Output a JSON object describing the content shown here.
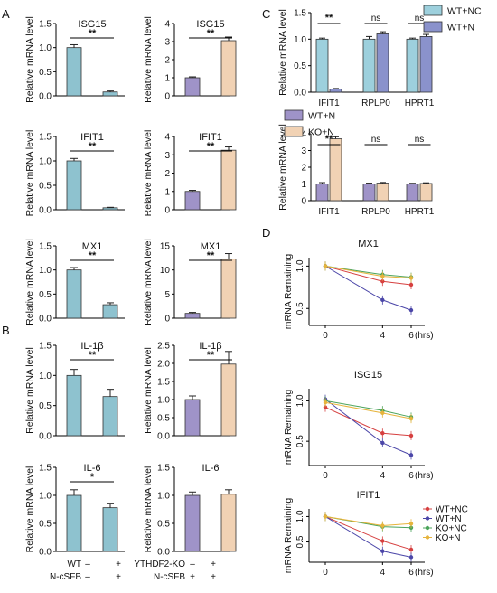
{
  "colors": {
    "blue_bar": "#8ec2cf",
    "purple_bar": "#9f93c8",
    "tan_bar": "#f1d2b4",
    "lightblue_bar": "#9dd0dd",
    "periwinkle_bar": "#8a92cc",
    "wt_nc": "#d64040",
    "wt_n": "#4b46a8",
    "ko_nc": "#4aa35a",
    "ko_n": "#e6b43c"
  },
  "panel_labels": [
    "A",
    "B",
    "C",
    "D"
  ],
  "axis": {
    "relative_mrna": "Relative mRNA level",
    "mrna_remaining": "mRNA Remaining"
  },
  "group_labels": {
    "left": {
      "row1": "WT",
      "row2": "N-cSFB",
      "marks1": [
        "–",
        "+"
      ],
      "marks2": [
        "–",
        "+"
      ]
    },
    "right": {
      "row1": "YTHDF2-KO",
      "row2": "N-cSFB",
      "marks1": [
        "–",
        "+"
      ],
      "marks2": [
        "+",
        "+"
      ]
    }
  },
  "chart_data": [
    {
      "id": "A-ISG15-left",
      "type": "bar",
      "title": "ISG15",
      "ylabel": "Relative mRNA level",
      "ylim": [
        0,
        1.5
      ],
      "yticks": [
        "0.0",
        "0.5",
        "1.0",
        "1.5"
      ],
      "values": [
        1.0,
        0.08
      ],
      "errors": [
        0.06,
        0.02
      ],
      "significance": "**"
    },
    {
      "id": "A-ISG15-right",
      "type": "bar",
      "title": "ISG15",
      "ylabel": "Relative mRNA level",
      "ylim": [
        0,
        4
      ],
      "yticks": [
        "0",
        "1",
        "2",
        "3",
        "4"
      ],
      "values": [
        1.0,
        3.05
      ],
      "errors": [
        0.05,
        0.2
      ],
      "significance": "**"
    },
    {
      "id": "A-IFIT1-left",
      "type": "bar",
      "title": "IFIT1",
      "ylabel": "Relative mRNA level",
      "ylim": [
        0,
        1.5
      ],
      "yticks": [
        "0.0",
        "0.5",
        "1.0",
        "1.5"
      ],
      "values": [
        1.0,
        0.04
      ],
      "errors": [
        0.05,
        0.01
      ],
      "significance": "**"
    },
    {
      "id": "A-IFIT1-right",
      "type": "bar",
      "title": "IFIT1",
      "ylabel": "Relative mRNA level",
      "ylim": [
        0,
        4
      ],
      "yticks": [
        "0",
        "1",
        "2",
        "3",
        "4"
      ],
      "values": [
        1.0,
        3.25
      ],
      "errors": [
        0.06,
        0.18
      ],
      "significance": "**"
    },
    {
      "id": "A-MX1-left",
      "type": "bar",
      "title": "MX1",
      "ylabel": "Relative mRNA level",
      "ylim": [
        0,
        1.5
      ],
      "yticks": [
        "0.0",
        "0.5",
        "1.0",
        "1.5"
      ],
      "values": [
        1.0,
        0.28
      ],
      "errors": [
        0.05,
        0.04
      ],
      "significance": "**"
    },
    {
      "id": "A-MX1-right",
      "type": "bar",
      "title": "MX1",
      "ylabel": "Relative mRNA level",
      "ylim": [
        0,
        15
      ],
      "yticks": [
        "0",
        "5",
        "10",
        "15"
      ],
      "values": [
        1.0,
        12.3
      ],
      "errors": [
        0.2,
        1.1
      ],
      "significance": "**"
    },
    {
      "id": "B-IL1b-left",
      "type": "bar",
      "title": "IL-1β",
      "ylabel": "Relative mRNA level",
      "ylim": [
        0,
        1.5
      ],
      "yticks": [
        "0.0",
        "0.5",
        "1.0",
        "1.5"
      ],
      "values": [
        1.0,
        0.65
      ],
      "errors": [
        0.1,
        0.12
      ],
      "significance": "**"
    },
    {
      "id": "B-IL1b-right",
      "type": "bar",
      "title": "IL-1β",
      "ylabel": "Relative mRNA level",
      "ylim": [
        0,
        2.5
      ],
      "yticks": [
        "0.0",
        "0.5",
        "1.0",
        "1.5",
        "2.0",
        "2.5"
      ],
      "values": [
        1.0,
        1.98
      ],
      "errors": [
        0.1,
        0.35
      ],
      "significance": "**"
    },
    {
      "id": "B-IL6-left",
      "type": "bar",
      "title": "IL-6",
      "ylabel": "Relative mRNA level",
      "ylim": [
        0,
        1.5
      ],
      "yticks": [
        "0.0",
        "0.5",
        "1.0",
        "1.5"
      ],
      "values": [
        1.0,
        0.78
      ],
      "errors": [
        0.1,
        0.08
      ],
      "significance": "*"
    },
    {
      "id": "B-IL6-right",
      "type": "bar",
      "title": "IL-6",
      "ylabel": "Relative mRNA level",
      "ylim": [
        0,
        1.5
      ],
      "yticks": [
        "0.0",
        "0.5",
        "1.0",
        "1.5"
      ],
      "values": [
        1.0,
        1.02
      ],
      "errors": [
        0.06,
        0.08
      ],
      "significance": ""
    },
    {
      "id": "C-top",
      "type": "bar",
      "title": "",
      "ylabel": "Relative mRNA level",
      "ylim": [
        0,
        1.5
      ],
      "yticks": [
        "0.0",
        "0.5",
        "1.0",
        "1.5"
      ],
      "categories": [
        "IFIT1",
        "RPLP0",
        "HPRT1"
      ],
      "series": [
        {
          "name": "WT+NC",
          "values": [
            1.0,
            1.0,
            1.0
          ],
          "errors": [
            0.02,
            0.05,
            0.02
          ]
        },
        {
          "name": "WT+N",
          "values": [
            0.06,
            1.1,
            1.05
          ],
          "errors": [
            0.01,
            0.04,
            0.04
          ]
        }
      ],
      "significance": [
        "**",
        "ns",
        "ns"
      ]
    },
    {
      "id": "C-bottom",
      "type": "bar",
      "title": "",
      "ylabel": "Relative mRNA level",
      "ylim": [
        0,
        4
      ],
      "yticks": [
        "0",
        "1",
        "2",
        "3",
        "4"
      ],
      "categories": [
        "IFIT1",
        "RPLP0",
        "HPRT1"
      ],
      "series": [
        {
          "name": "WT+N",
          "values": [
            1.0,
            1.0,
            1.0
          ],
          "errors": [
            0.08,
            0.05,
            0.04
          ]
        },
        {
          "name": "KO+N",
          "values": [
            3.7,
            1.05,
            1.03
          ],
          "errors": [
            0.12,
            0.04,
            0.04
          ]
        }
      ],
      "significance": [
        "**",
        "ns",
        "ns"
      ]
    },
    {
      "id": "D-MX1",
      "type": "line",
      "title": "MX1",
      "ylabel": "mRNA Remaining",
      "xlabel": "(hrs)",
      "x": [
        0,
        4,
        6
      ],
      "xticks": [
        "0",
        "4",
        "6"
      ],
      "ylim": [
        0.3,
        1.1
      ],
      "yticks": [
        "1.0",
        "0.5"
      ],
      "series": [
        {
          "name": "WT+NC",
          "values": [
            1.0,
            0.82,
            0.78
          ]
        },
        {
          "name": "WT+N",
          "values": [
            1.0,
            0.6,
            0.48
          ]
        },
        {
          "name": "KO+NC",
          "values": [
            1.0,
            0.9,
            0.87
          ]
        },
        {
          "name": "KO+N",
          "values": [
            1.0,
            0.88,
            0.86
          ]
        }
      ]
    },
    {
      "id": "D-ISG15",
      "type": "line",
      "title": "ISG15",
      "ylabel": "mRNA Remaining",
      "xlabel": "(hrs)",
      "x": [
        0,
        4,
        6
      ],
      "xticks": [
        "0",
        "4",
        "6"
      ],
      "ylim": [
        0.2,
        1.15
      ],
      "yticks": [
        "1.0",
        "0.5"
      ],
      "series": [
        {
          "name": "WT+NC",
          "values": [
            0.92,
            0.6,
            0.57
          ]
        },
        {
          "name": "WT+N",
          "values": [
            1.02,
            0.48,
            0.33
          ]
        },
        {
          "name": "KO+NC",
          "values": [
            1.0,
            0.88,
            0.8
          ]
        },
        {
          "name": "KO+N",
          "values": [
            0.98,
            0.85,
            0.78
          ]
        }
      ]
    },
    {
      "id": "D-IFIT1",
      "type": "line",
      "title": "IFIT1",
      "ylabel": "mRNA Remaining",
      "xlabel": "(hrs)",
      "x": [
        0,
        4,
        6
      ],
      "xticks": [
        "0",
        "4",
        "6"
      ],
      "ylim": [
        0.1,
        1.15
      ],
      "yticks": [
        "1.0",
        "0.5"
      ],
      "legend": "top-right",
      "series": [
        {
          "name": "WT+NC",
          "values": [
            1.0,
            0.52,
            0.35
          ]
        },
        {
          "name": "WT+N",
          "values": [
            1.0,
            0.32,
            0.2
          ]
        },
        {
          "name": "KO+NC",
          "values": [
            1.0,
            0.8,
            0.78
          ]
        },
        {
          "name": "KO+N",
          "values": [
            1.0,
            0.82,
            0.86
          ]
        }
      ]
    }
  ]
}
